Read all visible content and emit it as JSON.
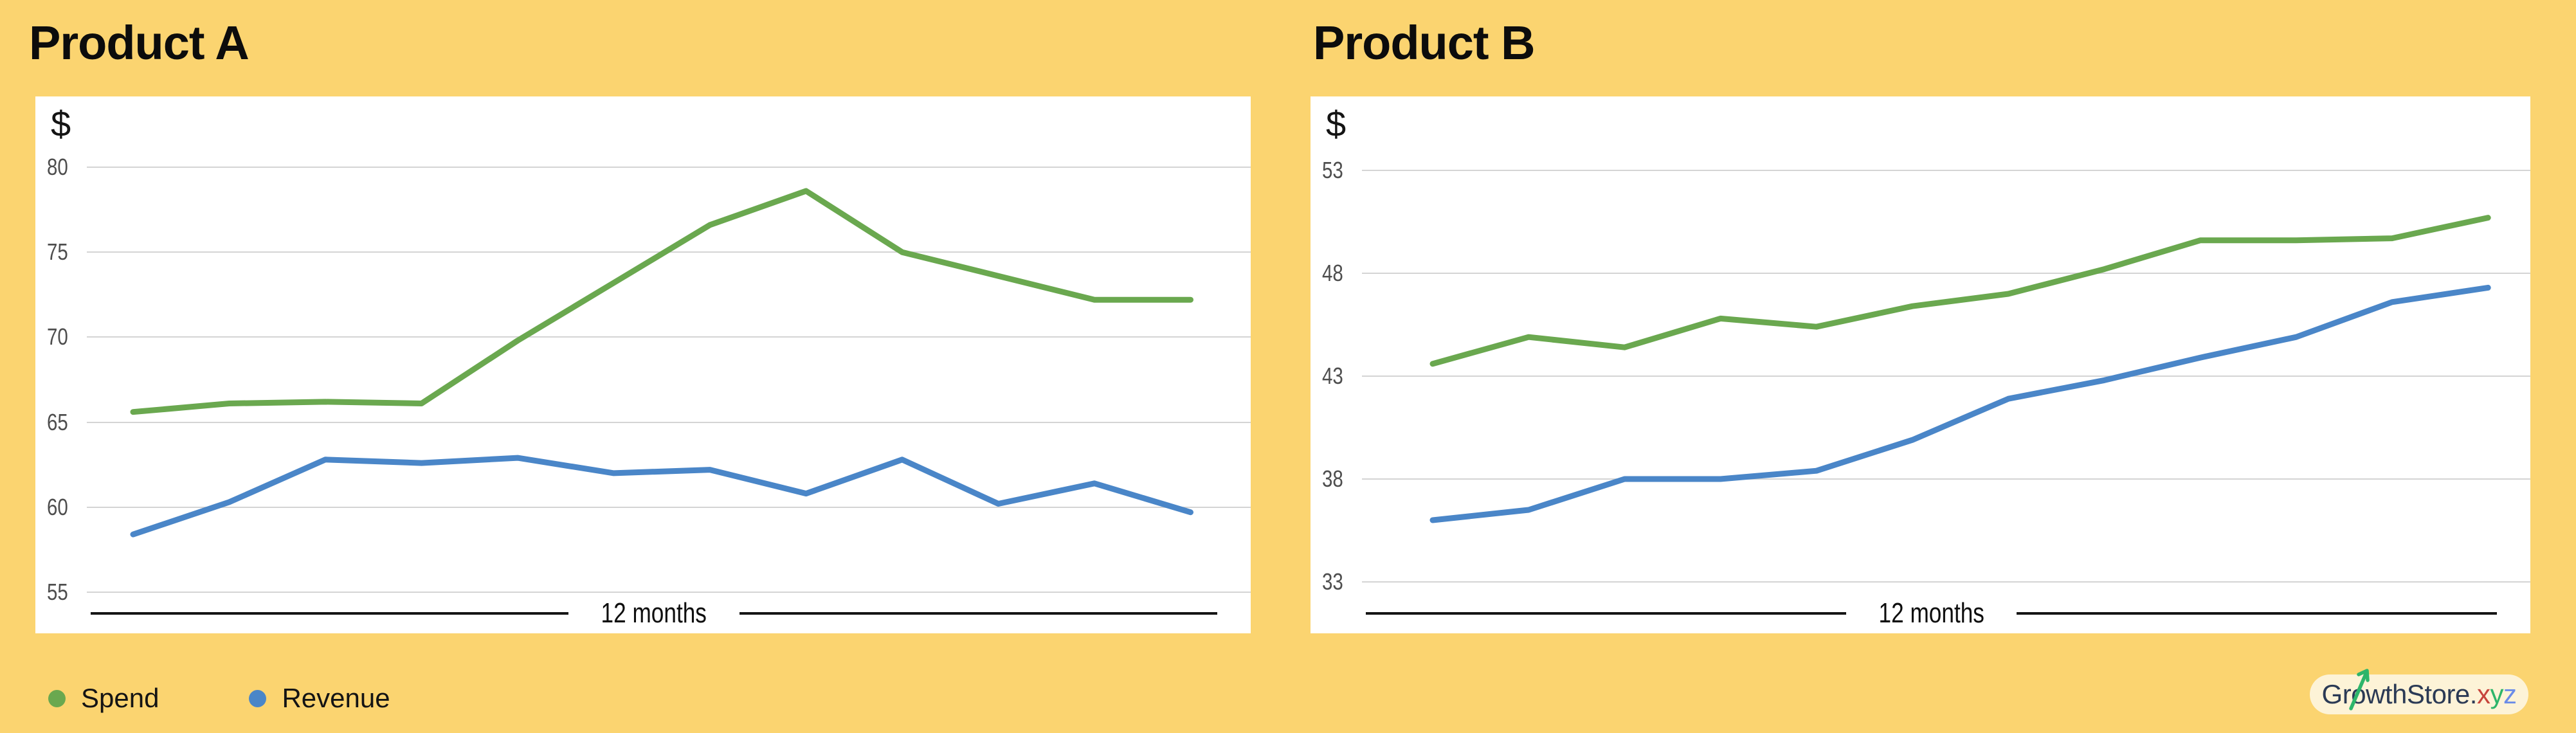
{
  "colors": {
    "background": "#fbd470",
    "panel": "#ffffff",
    "gridline": "#d4d4d4",
    "axis_line": "#151515",
    "tick_text": "#4e4e4e",
    "spend": "#6aa84f",
    "revenue": "#4a86c8",
    "logo_pill": "#fdf3d7",
    "logo_brand": "#2b3a55",
    "logo_x": "#c7453c",
    "logo_y": "#2db56a",
    "logo_z": "#6b8ce8"
  },
  "legend": {
    "items": [
      {
        "label": "Spend",
        "color_key": "spend"
      },
      {
        "label": "Revenue",
        "color_key": "revenue"
      }
    ]
  },
  "logo": {
    "full_text": "GrowthStore.xyz",
    "parts": {
      "prefix": "Gr",
      "o": "o",
      "rest": "wthStore",
      "dot": ".",
      "x": "x",
      "y": "y",
      "z": "z"
    }
  },
  "chart_data": [
    {
      "type": "line",
      "title": "Product A",
      "ylabel": "$",
      "xlabel": "12 months",
      "grid": true,
      "legend_position": "bottom-left",
      "y_ticks": [
        80,
        75,
        70,
        65,
        60,
        55
      ],
      "ylim": [
        54,
        82
      ],
      "x": [
        1,
        2,
        3,
        4,
        5,
        6,
        7,
        8,
        9,
        10,
        11,
        12
      ],
      "series": [
        {
          "name": "Revenue",
          "color": "#4a86c8",
          "values": [
            58.4,
            60.3,
            62.8,
            62.6,
            62.9,
            62.0,
            62.2,
            60.8,
            62.8,
            60.2,
            61.4,
            59.7
          ]
        },
        {
          "name": "Spend",
          "color": "#6aa84f",
          "values": [
            65.6,
            66.1,
            66.2,
            66.1,
            69.8,
            73.2,
            76.6,
            78.6,
            75.0,
            73.6,
            72.2,
            72.2
          ]
        }
      ]
    },
    {
      "type": "line",
      "title": "Product B",
      "ylabel": "$",
      "xlabel": "12 months",
      "grid": true,
      "legend_position": "bottom-left",
      "y_ticks": [
        53,
        48,
        43,
        38,
        33
      ],
      "ylim": [
        31,
        55
      ],
      "x": [
        1,
        2,
        3,
        4,
        5,
        6,
        7,
        8,
        9,
        10,
        11,
        12
      ],
      "series": [
        {
          "name": "Revenue",
          "color": "#4a86c8",
          "values": [
            36.0,
            36.5,
            38.0,
            38.0,
            38.4,
            39.9,
            41.9,
            42.8,
            43.9,
            44.9,
            46.6,
            47.3
          ]
        },
        {
          "name": "Spend",
          "color": "#6aa84f",
          "values": [
            43.6,
            44.9,
            44.4,
            45.8,
            45.4,
            46.4,
            47.0,
            48.2,
            49.6,
            49.6,
            49.7,
            50.7
          ]
        }
      ]
    }
  ]
}
